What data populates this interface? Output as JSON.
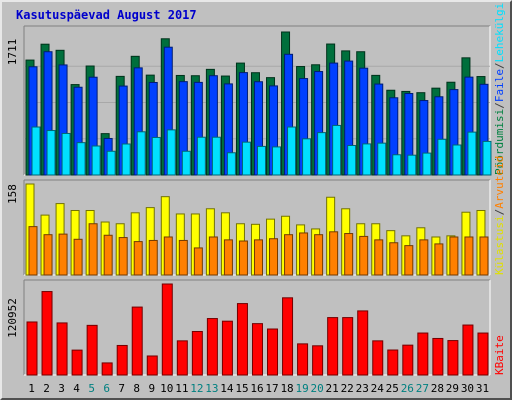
{
  "title": "Kasutuspäevad August 2017",
  "panel_max_labels": [
    "1711",
    "158",
    "120952"
  ],
  "legend": {
    "panel1": [
      {
        "text": "Pöördumisi",
        "color": "#008040"
      },
      {
        "text": "/",
        "color": "#404040"
      },
      {
        "text": "Faile",
        "color": "#0040ff"
      },
      {
        "text": "/",
        "color": "#404040"
      },
      {
        "text": "Lehekülgi",
        "color": "#00e0ff"
      }
    ],
    "panel2": [
      {
        "text": "Külastusi",
        "color": "#e0e000"
      },
      {
        "text": "/",
        "color": "#404040"
      },
      {
        "text": "Arvuteid",
        "color": "#ff8000"
      }
    ],
    "panel3": [
      {
        "text": "KBaite",
        "color": "#ff0000"
      }
    ]
  },
  "colors": {
    "hits": "#006f3c",
    "files": "#0040ff",
    "pages": "#00e0ff",
    "visits": "#ffff00",
    "sites": "#ff8000",
    "kbytes": "#ff0000",
    "weekday_label": "#000000",
    "weekend_label": "#008080"
  },
  "chart_data": {
    "type": "bar",
    "categories": [
      "1",
      "2",
      "3",
      "4",
      "5",
      "6",
      "7",
      "8",
      "9",
      "10",
      "11",
      "12",
      "13",
      "14",
      "15",
      "16",
      "17",
      "18",
      "19",
      "20",
      "21",
      "22",
      "23",
      "24",
      "25",
      "26",
      "27",
      "28",
      "29",
      "30",
      "31"
    ],
    "weekend_days": [
      "5",
      "6",
      "12",
      "13",
      "19",
      "20",
      "26",
      "27"
    ],
    "panels": [
      {
        "max_label": "1711",
        "ylim": [
          0,
          1711
        ],
        "series": [
          {
            "name": "Pöördumisi",
            "values": [
              1375,
              1565,
              1492,
              1082,
              1304,
              495,
              1180,
              1420,
              1195,
              1630,
              1191,
              1188,
              1264,
              1184,
              1339,
              1224,
              1165,
              1711,
              1298,
              1319,
              1567,
              1485,
              1475,
              1192,
              1014,
              1000,
              985,
              1039,
              1110,
              1402,
              1178
            ]
          },
          {
            "name": "Faile",
            "values": [
              1295,
              1475,
              1317,
              1050,
              1170,
              437,
              1064,
              1282,
              1107,
              1529,
              1117,
              1108,
              1188,
              1090,
              1225,
              1116,
              1066,
              1444,
              1154,
              1238,
              1339,
              1363,
              1278,
              1088,
              924,
              975,
              891,
              936,
              1022,
              1171,
              1085
            ]
          },
          {
            "name": "Lehekülgi",
            "values": [
              574,
              532,
              497,
              387,
              347,
              284,
              371,
              517,
              449,
              540,
              284,
              452,
              452,
              266,
              393,
              342,
              336,
              574,
              433,
              507,
              593,
              353,
              372,
              381,
              242,
              237,
              262,
              427,
              359,
              513,
              402
            ]
          }
        ]
      },
      {
        "max_label": "158",
        "ylim": [
          0,
          158
        ],
        "series": [
          {
            "name": "Külastusi",
            "values": [
              158,
              104,
              124,
              112,
              112,
              92,
              89,
              108,
              117,
              136,
              106,
              106,
              115,
              108,
              89,
              88,
              97,
              102,
              87,
              80,
              135,
              115,
              89,
              89,
              77,
              68,
              82,
              66,
              68,
              109,
              112
            ]
          },
          {
            "name": "Arvuteid",
            "values": [
              84,
              70,
              71,
              62,
              89,
              69,
              65,
              58,
              60,
              66,
              60,
              47,
              66,
              61,
              59,
              61,
              63,
              70,
              73,
              70,
              75,
              72,
              67,
              61,
              56,
              51,
              61,
              54,
              66,
              66,
              66
            ]
          }
        ]
      },
      {
        "max_label": "120952",
        "ylim": [
          0,
          120952
        ],
        "series": [
          {
            "name": "KBaite",
            "values": [
              70480,
              110920,
              69220,
              33070,
              65980,
              16060,
              39260,
              90280,
              25280,
              120952,
              45400,
              57830,
              75040,
              71520,
              94930,
              68280,
              61120,
              102600,
              41390,
              38820,
              76310,
              76310,
              85190,
              45400,
              33210,
              39680,
              55780,
              48560,
              45770,
              66410,
              55770
            ]
          }
        ]
      }
    ]
  }
}
